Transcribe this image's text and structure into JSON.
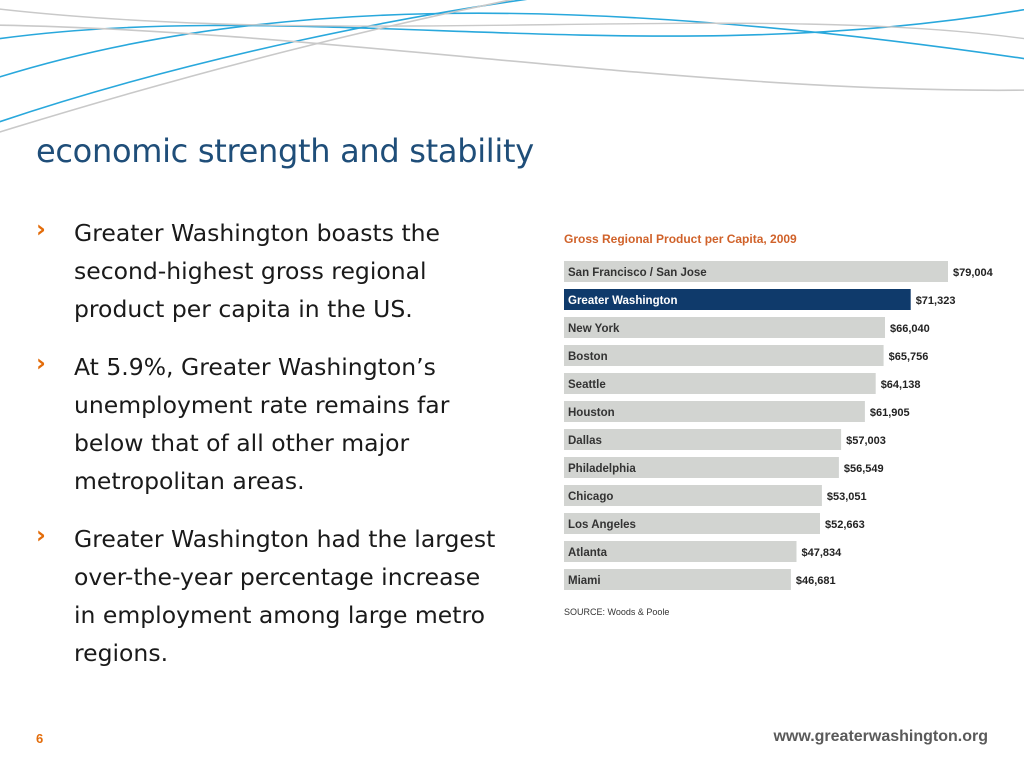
{
  "slide": {
    "title": "economic strength and stability",
    "page_number": "6",
    "footer_url": "www.greaterwashington.org"
  },
  "bullets": [
    {
      "text": "Greater Washington boasts the second-highest gross regional product per capita in the US.",
      "icon": "chevron-right-icon"
    },
    {
      "text": "At 5.9%, Greater Washington’s unemployment rate remains far below that of all other major metropolitan areas.",
      "icon": "chevron-right-icon"
    },
    {
      "text": "Greater Washington had the largest over-the-year percentage increase in employment among large metro regions.",
      "icon": "chevron-right-icon"
    }
  ],
  "chart_data": {
    "type": "bar",
    "orientation": "horizontal",
    "title": "Gross Regional Product per Capita, 2009",
    "source": "SOURCE:  Woods & Poole",
    "categories": [
      "San Francisco / San Jose",
      "Greater Washington",
      "New York",
      "Boston",
      "Seattle",
      "Houston",
      "Dallas",
      "Philadelphia",
      "Chicago",
      "Los Angeles",
      "Atlanta",
      "Miami"
    ],
    "values": [
      79004,
      71323,
      66040,
      65756,
      64138,
      61905,
      57003,
      56549,
      53051,
      52663,
      47834,
      46681
    ],
    "value_labels": [
      "$79,004",
      "$71,323",
      "$66,040",
      "$65,756",
      "$64,138",
      "$61,905",
      "$57,003",
      "$56,549",
      "$53,051",
      "$52,663",
      "$47,834",
      "$46,681"
    ],
    "highlight": "Greater Washington",
    "xlim": [
      0,
      79004
    ],
    "colors": {
      "bar": "#d2d4d1",
      "highlight": "#0f3a6b",
      "title": "#d0622a"
    },
    "grid": false,
    "legend": "none"
  },
  "theme": {
    "title_color": "#1f4e79",
    "bullet_color": "#e36c0a",
    "wave_blue": "#29a8dc",
    "wave_gray": "#c9c9c9"
  }
}
